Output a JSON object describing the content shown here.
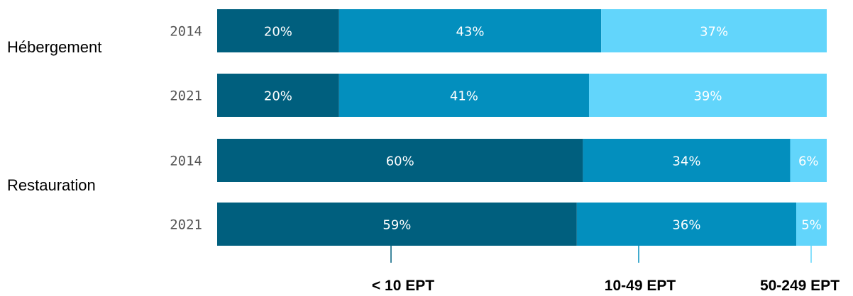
{
  "chart_data": {
    "type": "bar",
    "orientation": "horizontal",
    "stacked": true,
    "xlim": [
      0,
      100
    ],
    "groups": [
      {
        "label": "Hébergement",
        "rows": [
          {
            "year": "2014",
            "values": [
              20,
              43,
              37
            ],
            "labels": [
              "20%",
              "43%",
              "37%"
            ]
          },
          {
            "year": "2021",
            "values": [
              20,
              41,
              39
            ],
            "labels": [
              "20%",
              "41%",
              "39%"
            ]
          }
        ]
      },
      {
        "label": "Restauration",
        "rows": [
          {
            "year": "2014",
            "values": [
              60,
              34,
              6
            ],
            "labels": [
              "60%",
              "34%",
              "6%"
            ]
          },
          {
            "year": "2021",
            "values": [
              59,
              36,
              5
            ],
            "labels": [
              "59%",
              "36%",
              "5%"
            ]
          }
        ]
      }
    ],
    "series": [
      {
        "name": "< 10 EPT",
        "color": "#005f7e"
      },
      {
        "name": "10-49 EPT",
        "color": "#038fbe"
      },
      {
        "name": "50-249 EPT",
        "color": "#62d5fb"
      }
    ],
    "legend_position": "bottom",
    "grid": false
  }
}
